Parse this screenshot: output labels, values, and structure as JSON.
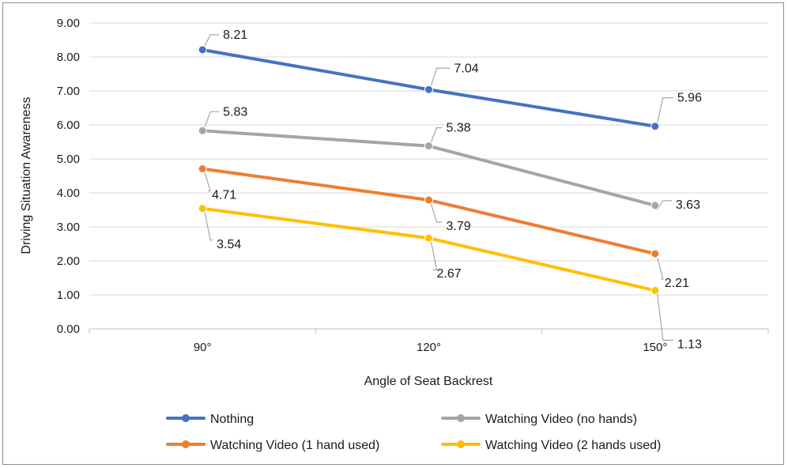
{
  "chart_data": {
    "type": "line",
    "title": "",
    "xlabel": "Angle of Seat Backrest",
    "ylabel": "Driving Situation Awareness",
    "categories": [
      "90°",
      "120°",
      "150°"
    ],
    "ylim": [
      0,
      9
    ],
    "yticks": [
      "0.00",
      "1.00",
      "2.00",
      "3.00",
      "4.00",
      "5.00",
      "6.00",
      "7.00",
      "8.00",
      "9.00"
    ],
    "grid": "horizontal",
    "legend_position": "bottom",
    "series": [
      {
        "name": "Nothing",
        "values": [
          8.21,
          7.04,
          5.96
        ],
        "labels": [
          "8.21",
          "7.04",
          "5.96"
        ],
        "color": "#4472c4"
      },
      {
        "name": "Watching Video (no hands)",
        "values": [
          5.83,
          5.38,
          3.63
        ],
        "labels": [
          "5.83",
          "5.38",
          "3.63"
        ],
        "color": "#a5a5a5"
      },
      {
        "name": "Watching Video (1 hand used)",
        "values": [
          4.71,
          3.79,
          2.21
        ],
        "labels": [
          "4.71",
          "3.79",
          "2.21"
        ],
        "color": "#ed7d31"
      },
      {
        "name": "Watching Video (2 hands used)",
        "values": [
          3.54,
          2.67,
          1.13
        ],
        "labels": [
          "3.54",
          "2.67",
          "1.13"
        ],
        "color": "#ffc000"
      }
    ]
  }
}
